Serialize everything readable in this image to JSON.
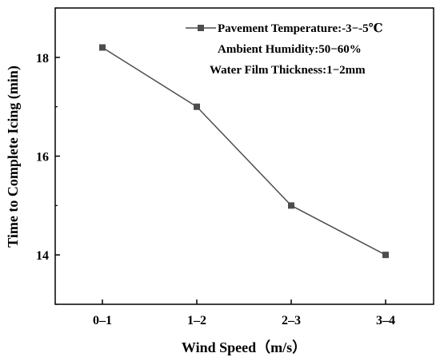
{
  "chart_data": {
    "type": "line",
    "categories": [
      "0–1",
      "1–2",
      "2–3",
      "3–4"
    ],
    "series": [
      {
        "name": "Pavement Temperature:-3−-5℃",
        "values": [
          18.2,
          17.0,
          15.0,
          14.0
        ]
      }
    ],
    "legend_extra": [
      "Ambient Humidity:50−60%",
      "Water Film Thickness:1−2mm"
    ],
    "xlabel": "Wind Speed（m/s）",
    "ylabel": "Time to Complete Icing (min)",
    "ylim": [
      13,
      19
    ],
    "yticks": [
      14,
      16,
      18
    ],
    "grid": false,
    "legend_position": "top-right",
    "line_color": "#4d4d4d",
    "marker": "square"
  }
}
